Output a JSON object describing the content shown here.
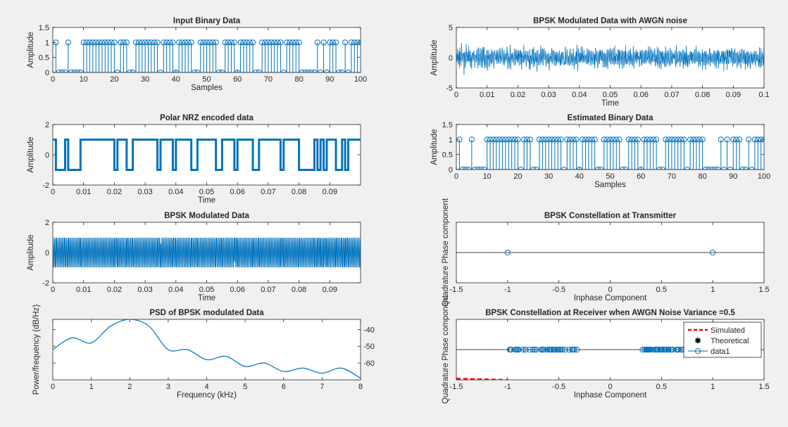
{
  "colors": {
    "series": "#0072bd",
    "axis": "#262626",
    "background": "#f0f0f0",
    "simulated": "#ff0000",
    "theoretical": "#000000"
  },
  "chart_data": [
    {
      "id": "input-binary",
      "type": "stem",
      "title": "Input Binary Data",
      "xlabel": "Samples",
      "ylabel": "Amplitude",
      "xlim": [
        0,
        100
      ],
      "ylim": [
        0,
        1.5
      ],
      "xticks": [
        "0",
        "10",
        "20",
        "30",
        "40",
        "50",
        "60",
        "70",
        "80",
        "90",
        "100"
      ],
      "yticks": [
        "0",
        "0.5",
        "1",
        "1.5"
      ],
      "bits": [
        1,
        0,
        0,
        0,
        1,
        0,
        0,
        0,
        0,
        1,
        1,
        1,
        1,
        1,
        1,
        1,
        1,
        1,
        1,
        1,
        0,
        1,
        1,
        1,
        0,
        0,
        1,
        1,
        1,
        1,
        1,
        1,
        1,
        1,
        0,
        1,
        1,
        1,
        1,
        0,
        1,
        1,
        1,
        1,
        1,
        0,
        0,
        1,
        1,
        1,
        1,
        1,
        1,
        0,
        0,
        1,
        1,
        1,
        1,
        0,
        1,
        1,
        1,
        1,
        1,
        0,
        0,
        1,
        1,
        1,
        1,
        1,
        1,
        1,
        0,
        1,
        1,
        1,
        1,
        1,
        0,
        0,
        0,
        0,
        0,
        1,
        0,
        1,
        0,
        1,
        1,
        1,
        0,
        0,
        1,
        0,
        1,
        1,
        1,
        1
      ]
    },
    {
      "id": "polar-nrz",
      "type": "line",
      "title": "Polar NRZ encoded data",
      "xlabel": "Time",
      "ylabel": "Amplitude",
      "xlim": [
        0,
        0.1
      ],
      "ylim": [
        -2,
        2
      ],
      "xticks": [
        "0",
        "0.01",
        "0.02",
        "0.03",
        "0.04",
        "0.05",
        "0.06",
        "0.07",
        "0.08",
        "0.09"
      ],
      "yticks": [
        "-2",
        "0",
        "2"
      ]
    },
    {
      "id": "bpsk-modulated",
      "type": "line",
      "title": "BPSK Modulated Data",
      "xlabel": "Time",
      "ylabel": "Amplitude",
      "xlim": [
        0,
        0.1
      ],
      "ylim": [
        -2,
        2
      ],
      "xticks": [
        "0",
        "0.01",
        "0.02",
        "0.03",
        "0.04",
        "0.05",
        "0.06",
        "0.07",
        "0.08",
        "0.09"
      ],
      "yticks": [
        "-2",
        "0",
        "2"
      ]
    },
    {
      "id": "psd",
      "type": "line",
      "title": "PSD of BPSK modulated Data",
      "xlabel": "Frequency (kHz)",
      "ylabel": "Power/frequency (dB/Hz)",
      "xlim": [
        0,
        8
      ],
      "ylim": [
        -70,
        -34
      ],
      "xticks": [
        "0",
        "1",
        "2",
        "3",
        "4",
        "5",
        "6",
        "7",
        "8"
      ],
      "yticks": [
        "-40",
        "-50",
        "-60"
      ],
      "x": [
        0,
        0.5,
        1,
        1.5,
        2,
        2.5,
        3,
        3.5,
        4,
        4.5,
        5,
        5.5,
        6,
        6.5,
        7,
        7.5,
        8
      ],
      "y": [
        -52,
        -45,
        -48,
        -38,
        -34,
        -38,
        -52,
        -52,
        -58,
        -56,
        -62,
        -60,
        -65,
        -63,
        -66,
        -63,
        -69
      ]
    },
    {
      "id": "awgn-data",
      "type": "line",
      "title": "BPSK Modulated Data with AWGN noise",
      "xlabel": "Time",
      "ylabel": "Amplitude",
      "xlim": [
        0,
        0.1
      ],
      "ylim": [
        -5,
        5
      ],
      "xticks": [
        "0",
        "0.01",
        "0.02",
        "0.03",
        "0.04",
        "0.05",
        "0.06",
        "0.07",
        "0.08",
        "0.09",
        "0.1"
      ],
      "yticks": [
        "-5",
        "0",
        "5"
      ]
    },
    {
      "id": "estimated-binary",
      "type": "stem",
      "title": "Estimated Binary Data",
      "xlabel": "Samples",
      "ylabel": "Amplitude",
      "xlim": [
        0,
        100
      ],
      "ylim": [
        0,
        1.5
      ],
      "xticks": [
        "0",
        "10",
        "20",
        "30",
        "40",
        "50",
        "60",
        "70",
        "80",
        "90",
        "100"
      ],
      "yticks": [
        "0",
        "0.5",
        "1",
        "1.5"
      ]
    },
    {
      "id": "tx-constellation",
      "type": "scatter",
      "title": "BPSK Constellation at Transmitter",
      "xlabel": "Inphase Component",
      "ylabel": "Quadrature Phase component",
      "xlim": [
        -1.5,
        1.5
      ],
      "ylim": [
        -1,
        1
      ],
      "xticks": [
        "-1.5",
        "-1",
        "-0.5",
        "0",
        "0.5",
        "1",
        "1.5"
      ],
      "points": [
        [
          -1,
          0
        ],
        [
          1,
          0
        ]
      ]
    },
    {
      "id": "rx-constellation",
      "type": "scatter",
      "title": "BPSK Constellation at Receiver when AWGN Noise Variance =0.5",
      "xlabel": "Inphase Component",
      "ylabel": "Quadrature Phase component",
      "xlim": [
        -1.5,
        1.5
      ],
      "ylim": [
        -1,
        1
      ],
      "xticks": [
        "-1.5",
        "-1",
        "-0.5",
        "0",
        "0.5",
        "1",
        "1.5"
      ],
      "legend": {
        "position": "top-right",
        "entries": [
          "Simulated",
          "Theoretical",
          "data1"
        ]
      },
      "clusters": [
        {
          "from": -0.98,
          "to": -0.32
        },
        {
          "from": 0.3,
          "to": 0.72
        }
      ]
    }
  ]
}
